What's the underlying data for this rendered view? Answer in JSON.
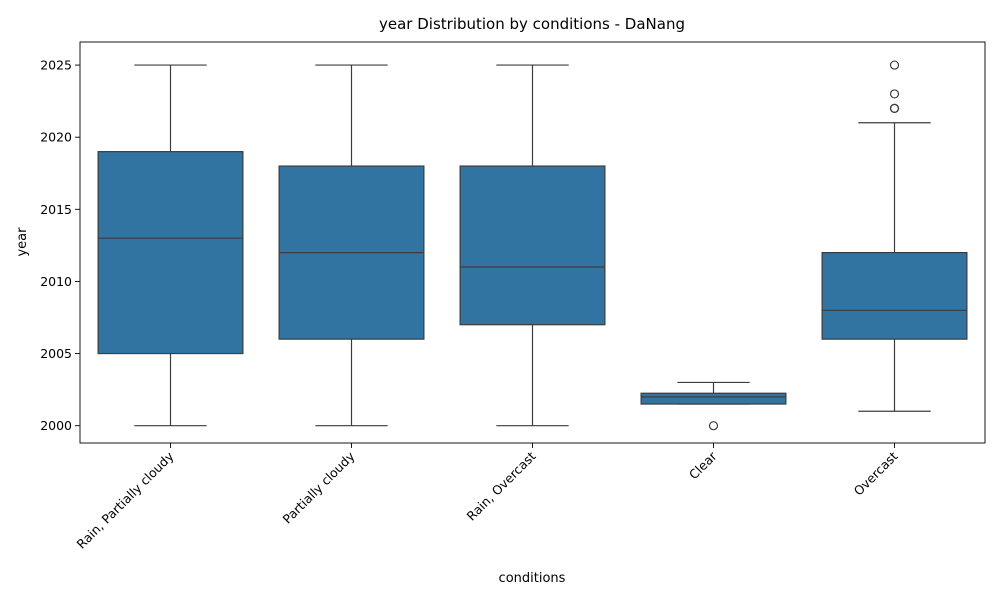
{
  "chart_data": {
    "type": "boxplot",
    "title": "year Distribution by conditions - DaNang",
    "xlabel": "conditions",
    "ylabel": "year",
    "ylim": [
      1998.8,
      2026.6
    ],
    "yticks": [
      2000,
      2005,
      2010,
      2015,
      2020,
      2025
    ],
    "grid": false,
    "color": "#3274a1",
    "line_color": "#3d3d3d",
    "categories": [
      "Rain, Partially cloudy",
      "Partially cloudy",
      "Rain, Overcast",
      "Clear",
      "Overcast"
    ],
    "boxes": [
      {
        "whisker_low": 2000,
        "q1": 2005,
        "median": 2013,
        "q3": 2019,
        "whisker_high": 2025,
        "outliers": []
      },
      {
        "whisker_low": 2000,
        "q1": 2006,
        "median": 2012,
        "q3": 2018,
        "whisker_high": 2025,
        "outliers": []
      },
      {
        "whisker_low": 2000,
        "q1": 2007,
        "median": 2011,
        "q3": 2018,
        "whisker_high": 2025,
        "outliers": []
      },
      {
        "whisker_low": 2001.5,
        "q1": 2001.5,
        "median": 2002,
        "q3": 2002.25,
        "whisker_high": 2003,
        "outliers": [
          2000
        ]
      },
      {
        "whisker_low": 2001,
        "q1": 2006,
        "median": 2008,
        "q3": 2012,
        "whisker_high": 2021,
        "outliers": [
          2022,
          2022,
          2023,
          2025
        ]
      }
    ]
  }
}
